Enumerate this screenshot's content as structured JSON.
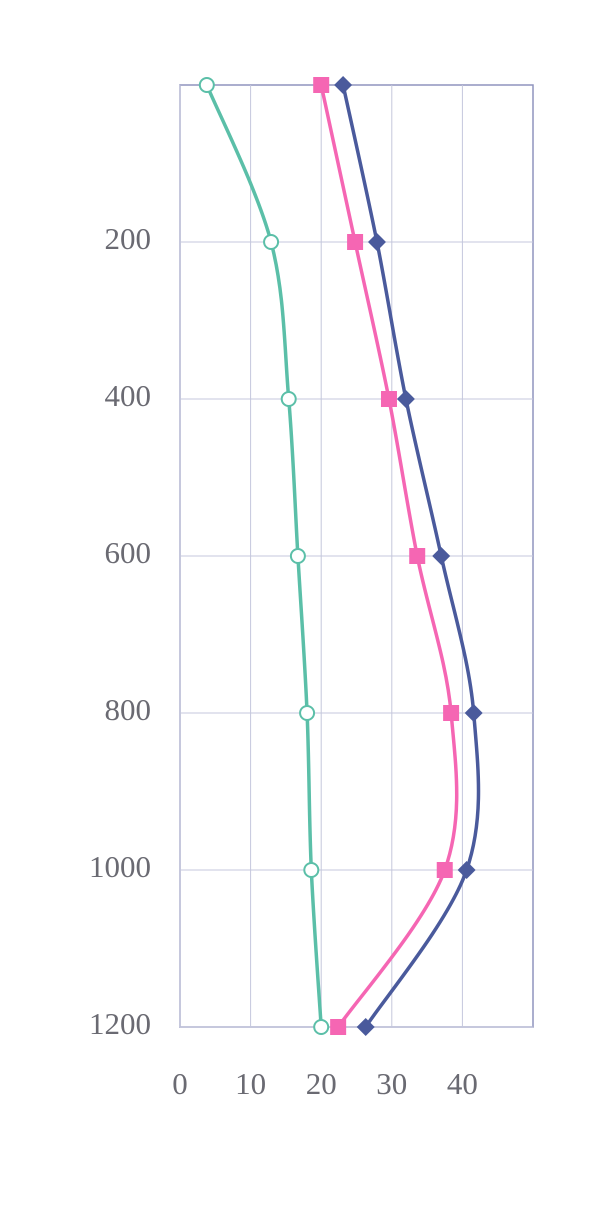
{
  "chart_data": {
    "type": "line",
    "y": [
      0,
      200,
      400,
      600,
      800,
      1000,
      1200
    ],
    "series": [
      {
        "color": "#5bbfa8",
        "marker": "circle",
        "values": [
          3.8,
          12.9,
          15.4,
          16.7,
          18.0,
          18.6,
          20.0
        ]
      },
      {
        "color": "#f566b3",
        "marker": "square",
        "values": [
          20.0,
          24.8,
          29.6,
          33.6,
          38.4,
          37.5,
          22.4
        ]
      },
      {
        "color": "#4a5a9c",
        "marker": "diamond",
        "values": [
          23.1,
          27.9,
          32.0,
          37.0,
          41.6,
          40.6,
          26.3
        ]
      }
    ],
    "xlim": [
      0,
      50
    ],
    "xticks": [
      0,
      10,
      20,
      30,
      40
    ],
    "ylim": [
      0,
      1200
    ],
    "yticks": [
      200,
      400,
      600,
      800,
      1000,
      1200
    ],
    "y_inverted": true,
    "grid": true,
    "smooth": true
  }
}
